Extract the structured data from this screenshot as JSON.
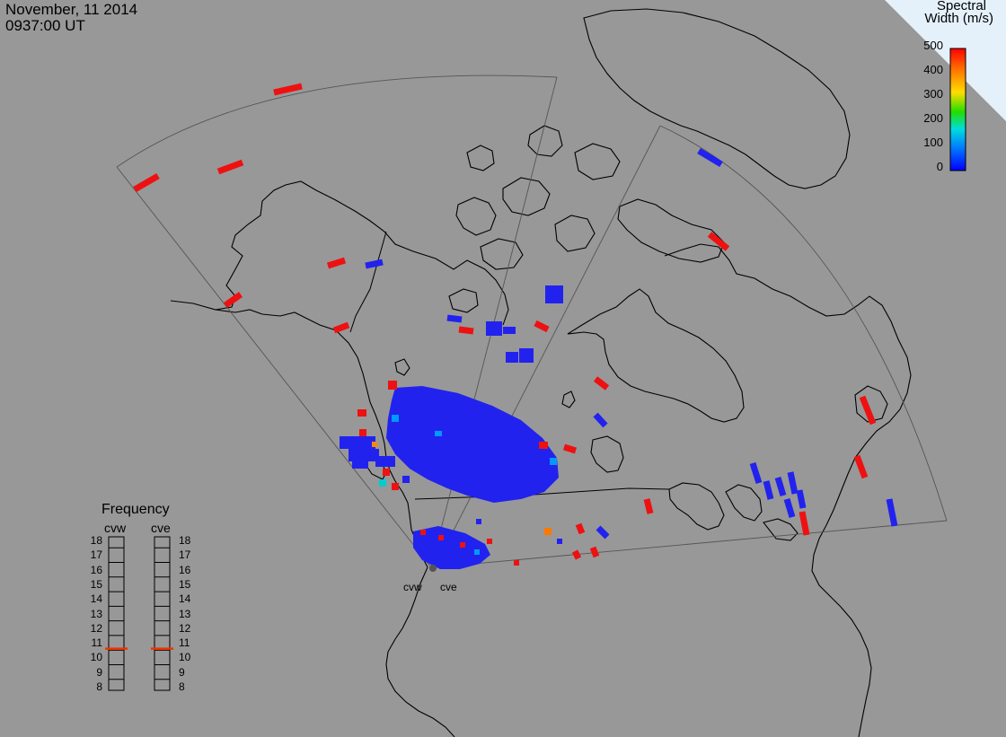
{
  "header": {
    "date": "November, 11 2014",
    "time": "0937:00 UT"
  },
  "colorbar": {
    "title_line1": "Spectral",
    "title_line2": "Width (m/s)",
    "ticks": [
      "500",
      "400",
      "300",
      "200",
      "100",
      "0"
    ],
    "min": 0,
    "max": 500,
    "colors": [
      "#ff0000",
      "#ffaa00",
      "#ffff00",
      "#00ee00",
      "#00eeee",
      "#0066ff",
      "#0000ff"
    ]
  },
  "frequency_panel": {
    "title": "Frequency",
    "radars": [
      {
        "name": "cvw",
        "freq_mhz": 10.6
      },
      {
        "name": "cve",
        "freq_mhz": 10.6
      }
    ],
    "scale": [
      "18",
      "17",
      "16",
      "15",
      "14",
      "13",
      "12",
      "11",
      "10",
      "9",
      "8"
    ]
  },
  "radar_sites": {
    "west_label": "cvw",
    "east_label": "cve"
  },
  "colors": {
    "background": "#989898",
    "coastline": "#000000",
    "fov": "#444444",
    "low_width": "#2222ee",
    "high_width": "#ee1111",
    "corner_panel": "#e4f1fb"
  }
}
